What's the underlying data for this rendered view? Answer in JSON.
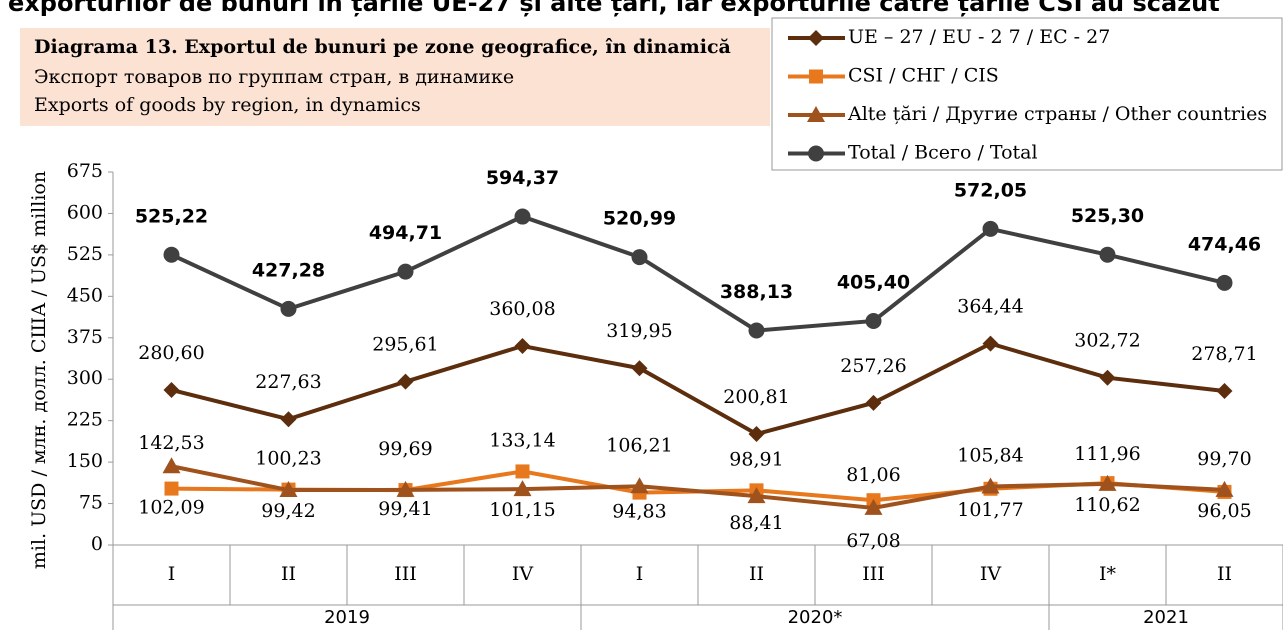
{
  "chart_data": {
    "type": "line",
    "title": "exporturilor de bunuri în țările UE-27 și alte țări, iar exporturile către țările CSI au scăzut",
    "subtitle": [
      "Diagrama 13. Exportul de bunuri pe zone geografice, în dinamică",
      "Экспорт товаров по группам стран, в динамике",
      "Exports of goods by region, in dynamics"
    ],
    "y_label": "mil. USD / млн. долл. США / US$ million",
    "categories": [
      "I",
      "II",
      "III",
      "IV",
      "I",
      "II",
      "III",
      "IV",
      "I*",
      "II"
    ],
    "groups": [
      {
        "label": "2019",
        "span": 4
      },
      {
        "label": "2020*",
        "span": 4
      },
      {
        "label": "2021",
        "span": 2
      }
    ],
    "ylim": [
      0,
      675
    ],
    "yticks": [
      0,
      75,
      150,
      225,
      300,
      375,
      450,
      525,
      600,
      675
    ],
    "series": [
      {
        "name": "UE – 27 / EU - 2 7 / EC - 27",
        "color": "#5c2e0e",
        "marker": "diamond",
        "values": [
          280.6,
          227.63,
          295.61,
          360.08,
          319.95,
          200.81,
          257.26,
          364.44,
          302.72,
          278.71
        ],
        "value_labels": [
          "280,60",
          "227,63",
          "295,61",
          "360,08",
          "319,95",
          "200,81",
          "257,26",
          "364,44",
          "302,72",
          "278,71"
        ]
      },
      {
        "name": "CSI / СНГ / CIS",
        "color": "#e8781e",
        "marker": "square",
        "values": [
          102.09,
          100.23,
          99.41,
          133.14,
          94.83,
          98.91,
          81.06,
          101.77,
          111.96,
          96.05
        ],
        "value_labels": [
          "102,09",
          "100,23",
          "99,41",
          "133,14",
          "94,83",
          "98,91",
          "81,06",
          "101,77",
          "111,96",
          "96,05"
        ]
      },
      {
        "name": "Alte țări / Другие страны / Other countries",
        "color": "#a0521d",
        "marker": "triangle",
        "values": [
          142.53,
          99.42,
          99.69,
          101.15,
          106.21,
          88.41,
          67.08,
          105.84,
          110.62,
          99.7
        ],
        "value_labels": [
          "142,53",
          "99,42",
          "99,69",
          "101,15",
          "106,21",
          "88,41",
          "67,08",
          "105,84",
          "110,62",
          "99,70"
        ]
      },
      {
        "name": "Total / Всего / Total",
        "color": "#404040",
        "marker": "circle",
        "values": [
          525.22,
          427.28,
          494.71,
          594.37,
          520.99,
          388.13,
          405.4,
          572.05,
          525.3,
          474.46
        ],
        "value_labels": [
          "525,22",
          "427,28",
          "494,71",
          "594,37",
          "520,99",
          "388,13",
          "405,40",
          "572,05",
          "525,30",
          "474,46"
        ]
      }
    ]
  }
}
